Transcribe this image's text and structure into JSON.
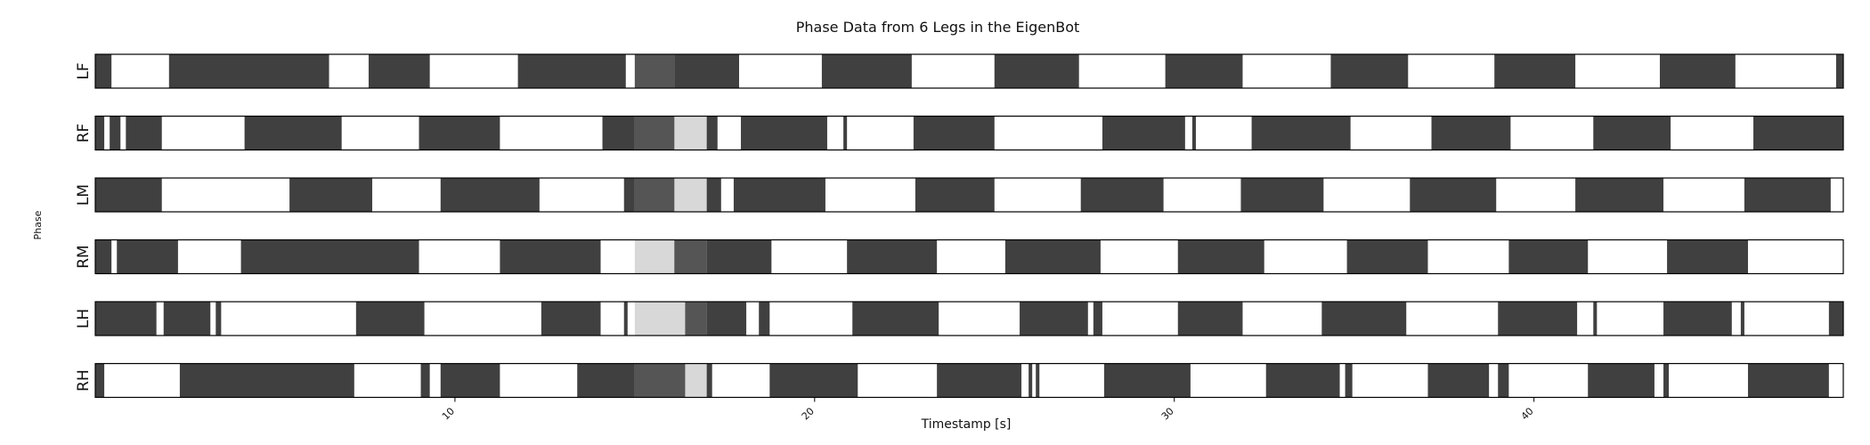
{
  "chart_data": {
    "type": "gait_phase_timeline",
    "title": "Phase Data from 6 Legs in the EigenBot",
    "xlabel": "Timestamp [s]",
    "ylabel": "Phase",
    "xlim": [
      0.0,
      48.6
    ],
    "xticks": [
      {
        "value": 10,
        "label": "10"
      },
      {
        "value": 20,
        "label": "20"
      },
      {
        "value": 30,
        "label": "30"
      },
      {
        "value": 40,
        "label": "40"
      }
    ],
    "highlight": {
      "start": 15.0,
      "mid": 16.1,
      "end": 17.0
    },
    "colors": {
      "stance": "#404040",
      "swing": "#ffffff",
      "highlight_stance": "#555555",
      "highlight_swing": "#d8d8d8",
      "frame": "#000000"
    },
    "legs": [
      {
        "name": "LF",
        "stance": [
          [
            0.0,
            0.45
          ],
          [
            2.05,
            6.5
          ],
          [
            7.6,
            9.3
          ],
          [
            11.75,
            14.75
          ],
          [
            15.0,
            16.1
          ],
          [
            16.1,
            17.9
          ],
          [
            20.2,
            22.7
          ],
          [
            25.0,
            27.35
          ],
          [
            29.75,
            31.9
          ],
          [
            34.35,
            36.5
          ],
          [
            38.9,
            41.15
          ],
          [
            43.5,
            45.6
          ],
          [
            48.4,
            48.6
          ]
        ]
      },
      {
        "name": "RF",
        "stance": [
          [
            0.0,
            0.25
          ],
          [
            0.4,
            0.7
          ],
          [
            0.85,
            1.85
          ],
          [
            4.15,
            6.85
          ],
          [
            9.0,
            11.25
          ],
          [
            14.1,
            15.0
          ],
          [
            15.0,
            16.1
          ],
          [
            17.0,
            17.3
          ],
          [
            17.95,
            20.35
          ],
          [
            20.8,
            20.9
          ],
          [
            22.75,
            25.0
          ],
          [
            28.0,
            30.3
          ],
          [
            30.5,
            30.6
          ],
          [
            32.15,
            34.9
          ],
          [
            37.15,
            39.35
          ],
          [
            41.65,
            43.8
          ],
          [
            46.1,
            48.6
          ]
        ]
      },
      {
        "name": "LM",
        "stance": [
          [
            0.0,
            1.85
          ],
          [
            5.4,
            7.7
          ],
          [
            9.6,
            12.35
          ],
          [
            14.7,
            15.0
          ],
          [
            15.0,
            16.1
          ],
          [
            17.0,
            17.4
          ],
          [
            17.75,
            20.3
          ],
          [
            22.8,
            25.0
          ],
          [
            27.4,
            29.7
          ],
          [
            31.85,
            34.15
          ],
          [
            36.55,
            38.95
          ],
          [
            41.15,
            43.6
          ],
          [
            45.85,
            48.25
          ]
        ]
      },
      {
        "name": "RM",
        "stance": [
          [
            0.0,
            0.45
          ],
          [
            0.6,
            2.3
          ],
          [
            4.05,
            9.0
          ],
          [
            11.25,
            14.05
          ],
          [
            16.1,
            17.0
          ],
          [
            17.0,
            18.8
          ],
          [
            20.9,
            23.4
          ],
          [
            25.3,
            27.95
          ],
          [
            30.1,
            32.5
          ],
          [
            34.8,
            37.05
          ],
          [
            39.3,
            41.5
          ],
          [
            43.7,
            45.95
          ]
        ]
      },
      {
        "name": "LH",
        "stance": [
          [
            0.0,
            1.7
          ],
          [
            1.9,
            3.2
          ],
          [
            3.35,
            3.5
          ],
          [
            7.25,
            9.15
          ],
          [
            12.4,
            14.05
          ],
          [
            14.7,
            14.8
          ],
          [
            16.4,
            17.0
          ],
          [
            17.0,
            18.1
          ],
          [
            18.45,
            18.75
          ],
          [
            21.05,
            23.45
          ],
          [
            25.7,
            27.6
          ],
          [
            27.75,
            28.0
          ],
          [
            30.1,
            31.9
          ],
          [
            34.1,
            36.45
          ],
          [
            39.0,
            41.2
          ],
          [
            41.65,
            41.75
          ],
          [
            43.6,
            45.5
          ],
          [
            45.75,
            45.85
          ],
          [
            48.2,
            48.6
          ]
        ]
      },
      {
        "name": "RH",
        "stance": [
          [
            0.0,
            0.25
          ],
          [
            2.35,
            7.2
          ],
          [
            9.05,
            9.3
          ],
          [
            9.6,
            11.25
          ],
          [
            13.4,
            15.0
          ],
          [
            15.0,
            16.4
          ],
          [
            17.0,
            17.15
          ],
          [
            18.75,
            21.2
          ],
          [
            23.4,
            25.75
          ],
          [
            25.95,
            26.05
          ],
          [
            26.15,
            26.25
          ],
          [
            28.05,
            30.45
          ],
          [
            32.55,
            34.6
          ],
          [
            34.75,
            34.95
          ],
          [
            37.05,
            38.75
          ],
          [
            39.0,
            39.3
          ],
          [
            41.5,
            43.35
          ],
          [
            43.6,
            43.75
          ],
          [
            45.95,
            48.2
          ]
        ]
      }
    ]
  }
}
